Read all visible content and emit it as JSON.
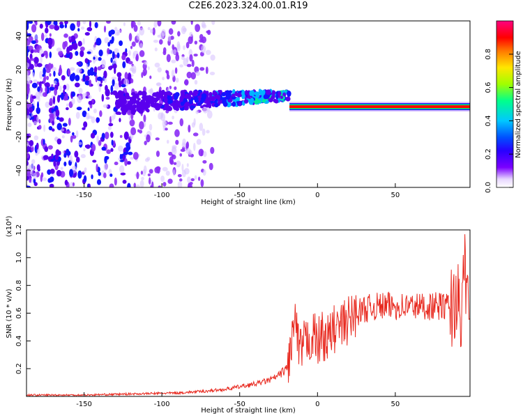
{
  "title": "C2E6.2023.324.00.01.R19",
  "chart_data": [
    {
      "type": "heatmap",
      "xlabel": "Height of straight line (km)",
      "ylabel": "Frequency (Hz)",
      "xlim": [
        -187,
        98
      ],
      "ylim": [
        -50,
        49
      ],
      "xticks": [
        -150,
        -100,
        -50,
        0,
        50
      ],
      "xtick_labels": [
        "-150",
        "-100",
        "-50",
        "0",
        "50"
      ],
      "yticks": [
        -40,
        -20,
        0,
        20,
        40
      ],
      "ytick_labels": [
        "-40",
        "-20",
        "0",
        "20",
        "40"
      ],
      "colorbar": {
        "label": "Normalized spectral amplitude",
        "range": [
          0,
          1
        ],
        "ticks": [
          0.0,
          0.2,
          0.4,
          0.6,
          0.8
        ],
        "tick_labels": [
          "0.0",
          "0.2",
          "0.4",
          "0.6",
          "0.8"
        ],
        "colormap": [
          "#ffffff",
          "#7b00ff",
          "#0000ff",
          "#00c8ff",
          "#00ff64",
          "#c8ff00",
          "#ffc800",
          "#ff0000",
          "#ff0080"
        ]
      },
      "features": [
        {
          "name": "scattered noise",
          "x_range": [
            -187,
            -70
          ],
          "freq_range": [
            -50,
            49
          ],
          "amplitude": 0.1
        },
        {
          "name": "broadening band",
          "x_range": [
            -130,
            -20
          ],
          "freq_range": [
            -10,
            8
          ],
          "amplitude": 0.3
        },
        {
          "name": "carrier line",
          "x_range": [
            -18,
            98
          ],
          "freq": -2,
          "amplitude": 0.95
        }
      ],
      "grid": false
    },
    {
      "type": "line",
      "xlabel": "Height of straight line (km)",
      "ylabel": "SNR (10 * v/v)",
      "y_multiplier": "(x10⁴)",
      "xlim": [
        -187,
        98
      ],
      "ylim": [
        0,
        1.2
      ],
      "xticks": [
        -150,
        -100,
        -50,
        0,
        50
      ],
      "xtick_labels": [
        "-150",
        "-100",
        "-50",
        "0",
        "50"
      ],
      "yticks": [
        0.2,
        0.4,
        0.6,
        0.8,
        1.0,
        1.2
      ],
      "ytick_labels": [
        "0.2",
        "0.4",
        "0.6",
        "0.8",
        "1.0",
        "1.2"
      ],
      "series": [
        {
          "color": "#e8291f",
          "x": [
            -187,
            -170,
            -150,
            -130,
            -110,
            -90,
            -75,
            -60,
            -50,
            -40,
            -30,
            -25,
            -20,
            -18,
            -16,
            -14,
            -12,
            -10,
            -8,
            -5,
            -2,
            0,
            3,
            6,
            10,
            15,
            20,
            25,
            30,
            35,
            40,
            50,
            60,
            70,
            80,
            86,
            88,
            90,
            92,
            94,
            96,
            98
          ],
          "values": [
            0.01,
            0.01,
            0.01,
            0.015,
            0.02,
            0.025,
            0.035,
            0.05,
            0.07,
            0.09,
            0.12,
            0.15,
            0.2,
            0.28,
            0.45,
            0.55,
            0.3,
            0.35,
            0.38,
            0.42,
            0.44,
            0.38,
            0.45,
            0.4,
            0.48,
            0.5,
            0.55,
            0.6,
            0.63,
            0.64,
            0.65,
            0.65,
            0.65,
            0.65,
            0.65,
            0.65,
            0.66,
            0.8,
            0.3,
            1.1,
            0.6,
            0.8
          ]
        }
      ],
      "grid": false
    }
  ]
}
